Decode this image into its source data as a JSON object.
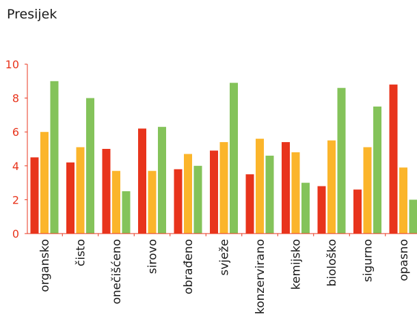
{
  "chart_data": {
    "type": "bar",
    "title": "Presijek",
    "xlabel": "",
    "ylabel": "",
    "ylim": [
      0,
      10
    ],
    "yticks": [
      0,
      2,
      4,
      6,
      8,
      10
    ],
    "grid": false,
    "legend": "none",
    "categories": [
      "organsko",
      "čisto",
      "onečišćeno",
      "sirovo",
      "obrađeno",
      "svježe",
      "konzervirano",
      "kemijsko",
      "biološko",
      "sigurno",
      "opasno"
    ],
    "series": [
      {
        "color": "#e8341c",
        "values": [
          4.5,
          4.2,
          5.0,
          6.2,
          3.8,
          4.9,
          3.5,
          5.4,
          2.8,
          2.6,
          8.8
        ]
      },
      {
        "color": "#fbb52b",
        "values": [
          6.0,
          5.1,
          3.7,
          3.7,
          4.7,
          5.4,
          5.6,
          4.8,
          5.5,
          5.1,
          3.9
        ]
      },
      {
        "color": "#84c35a",
        "values": [
          9.0,
          8.0,
          2.5,
          6.3,
          4.0,
          8.9,
          4.6,
          3.0,
          8.6,
          7.5,
          2.0
        ]
      }
    ],
    "axis_color": "#e8341c"
  }
}
